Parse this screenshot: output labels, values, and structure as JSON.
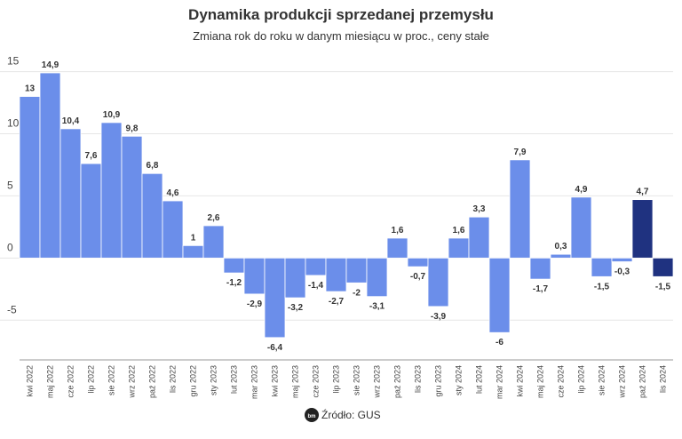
{
  "chart_data": {
    "type": "bar",
    "title": "Dynamika produkcji sprzedanej przemysłu",
    "subtitle": "Zmiana rok do roku w danym miesiącu w proc., ceny stałe",
    "source": "Źródło: GUS",
    "categories": [
      "kwi 2022",
      "maj 2022",
      "cze 2022",
      "lip 2022",
      "sie 2022",
      "wrz 2022",
      "paź 2022",
      "lis 2022",
      "gru 2022",
      "sty 2023",
      "lut 2023",
      "mar 2023",
      "kwi 2023",
      "maj 2023",
      "cze 2023",
      "lip 2023",
      "sie 2023",
      "wrz 2023",
      "paź 2023",
      "lis 2023",
      "gru 2023",
      "sty 2024",
      "lut 2024",
      "mar 2024",
      "kwi 2024",
      "maj 2024",
      "cze 2024",
      "lip 2024",
      "sie 2024",
      "wrz 2024",
      "paź 2024",
      "lis 2024"
    ],
    "values": [
      13,
      14.9,
      10.4,
      7.6,
      10.9,
      9.8,
      6.8,
      4.6,
      1,
      2.6,
      -1.2,
      -2.9,
      -6.4,
      -3.2,
      -1.4,
      -2.7,
      -2,
      -3.1,
      1.6,
      -0.7,
      -3.9,
      1.6,
      3.3,
      -6,
      7.9,
      -1.7,
      0.3,
      4.9,
      -1.5,
      -0.3,
      4.7,
      -1.5
    ],
    "value_labels": [
      "13",
      "14,9",
      "10,4",
      "7,6",
      "10,9",
      "9,8",
      "6,8",
      "4,6",
      "1",
      "2,6",
      "-1,2",
      "-2,9",
      "-6,4",
      "-3,2",
      "-1,4",
      "-2,7",
      "-2",
      "-3,1",
      "1,6",
      "-0,7",
      "-3,9",
      "1,6",
      "3,3",
      "-6",
      "7,9",
      "-1,7",
      "0,3",
      "4,9",
      "-1,5",
      "-0,3",
      "4,7",
      "-1,5"
    ],
    "colors": [
      "#6b8eea",
      "#6b8eea",
      "#6b8eea",
      "#6b8eea",
      "#6b8eea",
      "#6b8eea",
      "#6b8eea",
      "#6b8eea",
      "#6b8eea",
      "#6b8eea",
      "#6b8eea",
      "#6b8eea",
      "#6b8eea",
      "#6b8eea",
      "#6b8eea",
      "#6b8eea",
      "#6b8eea",
      "#6b8eea",
      "#6b8eea",
      "#6b8eea",
      "#6b8eea",
      "#6b8eea",
      "#6b8eea",
      "#6b8eea",
      "#6b8eea",
      "#6b8eea",
      "#6b8eea",
      "#6b8eea",
      "#6b8eea",
      "#6b8eea",
      "#1f3280",
      "#1f3280"
    ],
    "ylim": [
      -8.2,
      15.9
    ],
    "yticks": [
      -5,
      0,
      5,
      10,
      15
    ],
    "grid": true
  }
}
